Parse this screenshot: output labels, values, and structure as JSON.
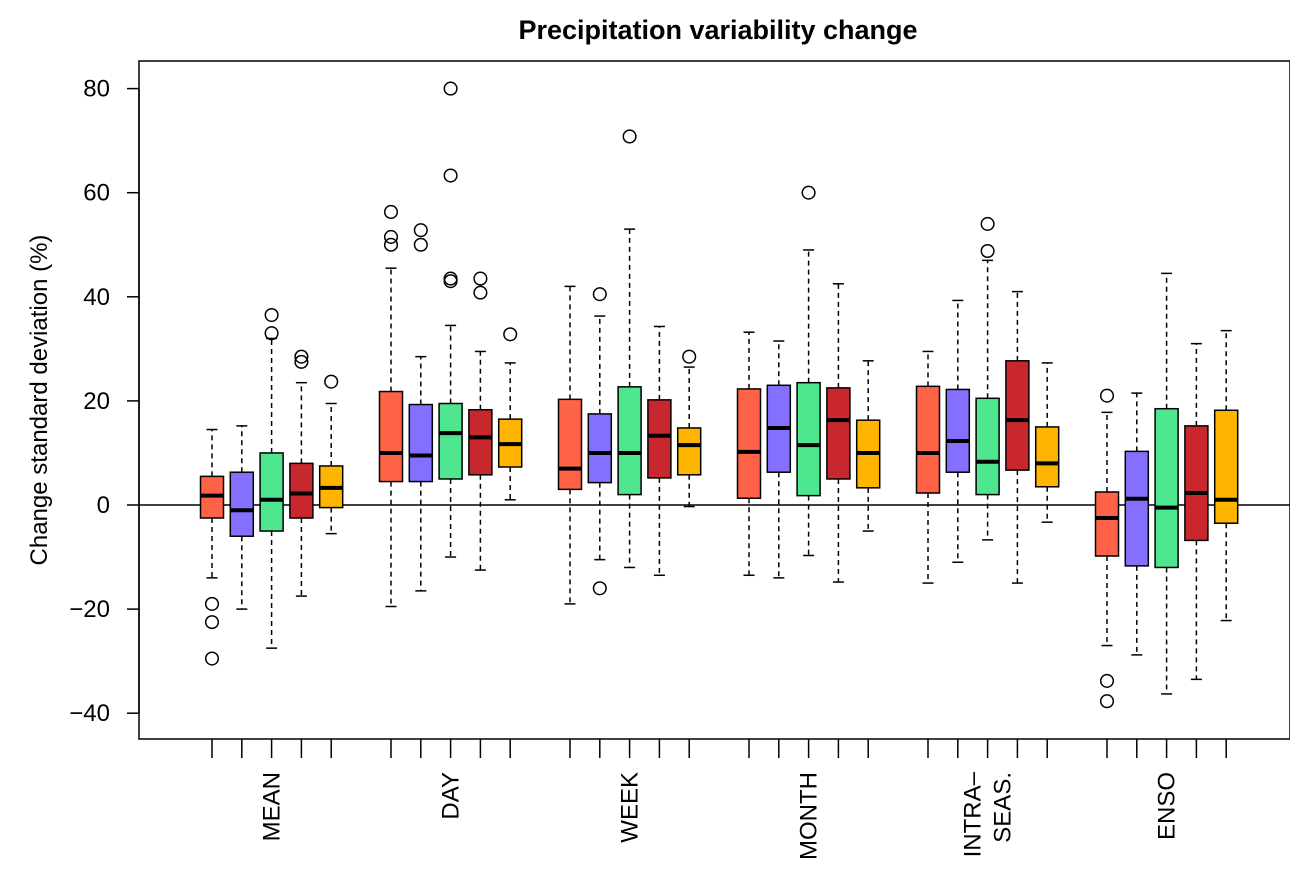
{
  "chart_data": {
    "type": "box",
    "title": "Precipitation variability change",
    "ylabel": "Change standard deviation (%)",
    "xlabel": "",
    "ylim": [
      -45,
      85
    ],
    "yticks": [
      -40,
      -20,
      0,
      20,
      40,
      60,
      80
    ],
    "ytick_labels": [
      "−40",
      "−20",
      "0",
      "20",
      "40",
      "60",
      "80"
    ],
    "zero_line": true,
    "grid": false,
    "legend": "none",
    "series_colors": [
      "#ff6347",
      "#8470ff",
      "#4ee68e",
      "#c8282d",
      "#ffb400"
    ],
    "categories": [
      {
        "label_lines": [
          "MEAN"
        ],
        "boxes": [
          {
            "q1": -2.5,
            "median": 1.8,
            "q3": 5.5,
            "wlow": -14,
            "whigh": 14.5,
            "outliers": [
              -19,
              -22.5,
              -29.5
            ]
          },
          {
            "q1": -6,
            "median": -1,
            "q3": 6.3,
            "wlow": -20,
            "whigh": 15.2,
            "outliers": []
          },
          {
            "q1": -5,
            "median": 1,
            "q3": 10,
            "wlow": -27.5,
            "whigh": 32,
            "outliers": [
              36.5,
              33
            ]
          },
          {
            "q1": -2.5,
            "median": 2.2,
            "q3": 8,
            "wlow": -17.5,
            "whigh": 23.5,
            "outliers": [
              28.5,
              27.5
            ]
          },
          {
            "q1": -0.5,
            "median": 3.3,
            "q3": 7.5,
            "wlow": -5.5,
            "whigh": 19.5,
            "outliers": [
              23.7
            ]
          }
        ]
      },
      {
        "label_lines": [
          "DAY"
        ],
        "boxes": [
          {
            "q1": 4.5,
            "median": 10,
            "q3": 21.8,
            "wlow": -19.5,
            "whigh": 45.5,
            "outliers": [
              56.3,
              51.5,
              50
            ]
          },
          {
            "q1": 4.5,
            "median": 9.5,
            "q3": 19.3,
            "wlow": -16.5,
            "whigh": 28.5,
            "outliers": [
              52.8,
              50
            ]
          },
          {
            "q1": 5,
            "median": 13.8,
            "q3": 19.5,
            "wlow": -10,
            "whigh": 34.5,
            "outliers": [
              80,
              63.3,
              43.5,
              43
            ]
          },
          {
            "q1": 5.8,
            "median": 13,
            "q3": 18.3,
            "wlow": -12.5,
            "whigh": 29.5,
            "outliers": [
              43.5,
              40.8
            ]
          },
          {
            "q1": 7.3,
            "median": 11.7,
            "q3": 16.5,
            "wlow": 1,
            "whigh": 27.3,
            "outliers": [
              32.8
            ]
          }
        ]
      },
      {
        "label_lines": [
          "WEEK"
        ],
        "boxes": [
          {
            "q1": 3,
            "median": 7,
            "q3": 20.3,
            "wlow": -19,
            "whigh": 42,
            "outliers": []
          },
          {
            "q1": 4.3,
            "median": 10,
            "q3": 17.5,
            "wlow": -10.5,
            "whigh": 36.3,
            "outliers": [
              40.5,
              -16
            ]
          },
          {
            "q1": 2,
            "median": 10,
            "q3": 22.7,
            "wlow": -12,
            "whigh": 53,
            "outliers": [
              70.8
            ]
          },
          {
            "q1": 5.2,
            "median": 13.3,
            "q3": 20.2,
            "wlow": -13.5,
            "whigh": 34.3,
            "outliers": []
          },
          {
            "q1": 5.8,
            "median": 11.5,
            "q3": 14.8,
            "wlow": -0.3,
            "whigh": 26.5,
            "outliers": [
              28.5
            ]
          }
        ]
      },
      {
        "label_lines": [
          "MONTH"
        ],
        "boxes": [
          {
            "q1": 1.3,
            "median": 10.2,
            "q3": 22.3,
            "wlow": -13.5,
            "whigh": 33.2,
            "outliers": []
          },
          {
            "q1": 6.3,
            "median": 14.8,
            "q3": 23,
            "wlow": -14,
            "whigh": 31.5,
            "outliers": []
          },
          {
            "q1": 1.8,
            "median": 11.5,
            "q3": 23.5,
            "wlow": -9.7,
            "whigh": 49,
            "outliers": [
              60
            ]
          },
          {
            "q1": 5,
            "median": 16.3,
            "q3": 22.5,
            "wlow": -14.8,
            "whigh": 42.5,
            "outliers": []
          },
          {
            "q1": 3.3,
            "median": 10,
            "q3": 16.3,
            "wlow": -5,
            "whigh": 27.7,
            "outliers": []
          }
        ]
      },
      {
        "label_lines": [
          "INTRA–",
          "SEAS."
        ],
        "boxes": [
          {
            "q1": 2.3,
            "median": 10,
            "q3": 22.8,
            "wlow": -15,
            "whigh": 29.5,
            "outliers": []
          },
          {
            "q1": 6.3,
            "median": 12.3,
            "q3": 22.2,
            "wlow": -11,
            "whigh": 39.3,
            "outliers": []
          },
          {
            "q1": 2,
            "median": 8.3,
            "q3": 20.5,
            "wlow": -6.7,
            "whigh": 47,
            "outliers": [
              54,
              48.8
            ]
          },
          {
            "q1": 6.7,
            "median": 16.3,
            "q3": 27.7,
            "wlow": -15,
            "whigh": 41,
            "outliers": []
          },
          {
            "q1": 3.5,
            "median": 8,
            "q3": 15,
            "wlow": -3.3,
            "whigh": 27.3,
            "outliers": []
          }
        ]
      },
      {
        "label_lines": [
          "ENSO"
        ],
        "boxes": [
          {
            "q1": -9.8,
            "median": -2.5,
            "q3": 2.5,
            "wlow": -27,
            "whigh": 17.8,
            "outliers": [
              21,
              -33.8,
              -37.7
            ]
          },
          {
            "q1": -11.7,
            "median": 1.2,
            "q3": 10.3,
            "wlow": -28.8,
            "whigh": 21.5,
            "outliers": []
          },
          {
            "q1": -12,
            "median": -0.5,
            "q3": 18.5,
            "wlow": -36.3,
            "whigh": 44.5,
            "outliers": []
          },
          {
            "q1": -6.8,
            "median": 2.3,
            "q3": 15.2,
            "wlow": -33.5,
            "whigh": 31,
            "outliers": []
          },
          {
            "q1": -3.5,
            "median": 1,
            "q3": 18.2,
            "wlow": -22.2,
            "whigh": 33.5,
            "outliers": []
          }
        ]
      }
    ]
  }
}
